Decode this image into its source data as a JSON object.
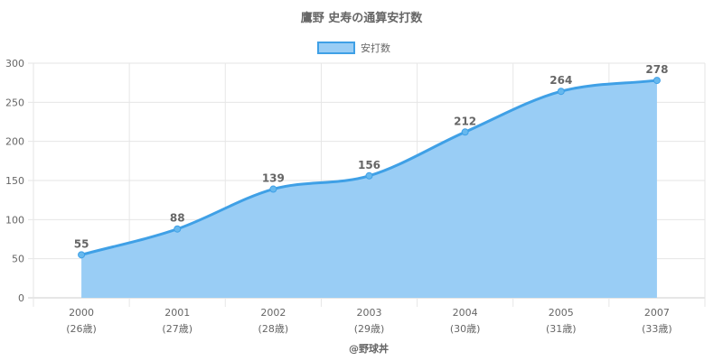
{
  "chart_data": {
    "type": "area",
    "title": "鷹野 史寿の通算安打数",
    "legend": {
      "label": "安打数",
      "placement": "top"
    },
    "categories": [
      "2000",
      "2001",
      "2002",
      "2003",
      "2004",
      "2005",
      "2007"
    ],
    "sublabels": [
      "(26歳)",
      "(27歳)",
      "(28歳)",
      "(29歳)",
      "(30歳)",
      "(31歳)",
      "(33歳)"
    ],
    "series": [
      {
        "name": "安打数",
        "values": [
          55,
          88,
          139,
          156,
          212,
          264,
          278
        ]
      }
    ],
    "ylim": [
      0,
      300
    ],
    "yticks": [
      0,
      50,
      100,
      150,
      200,
      250,
      300
    ],
    "grid": true,
    "colors": {
      "line": "#3fa0e6",
      "fill": "#99cdf5",
      "point": "#66b8ee",
      "text": "#666666",
      "grid": "#e6e6e6"
    },
    "credit": "@野球丼"
  }
}
